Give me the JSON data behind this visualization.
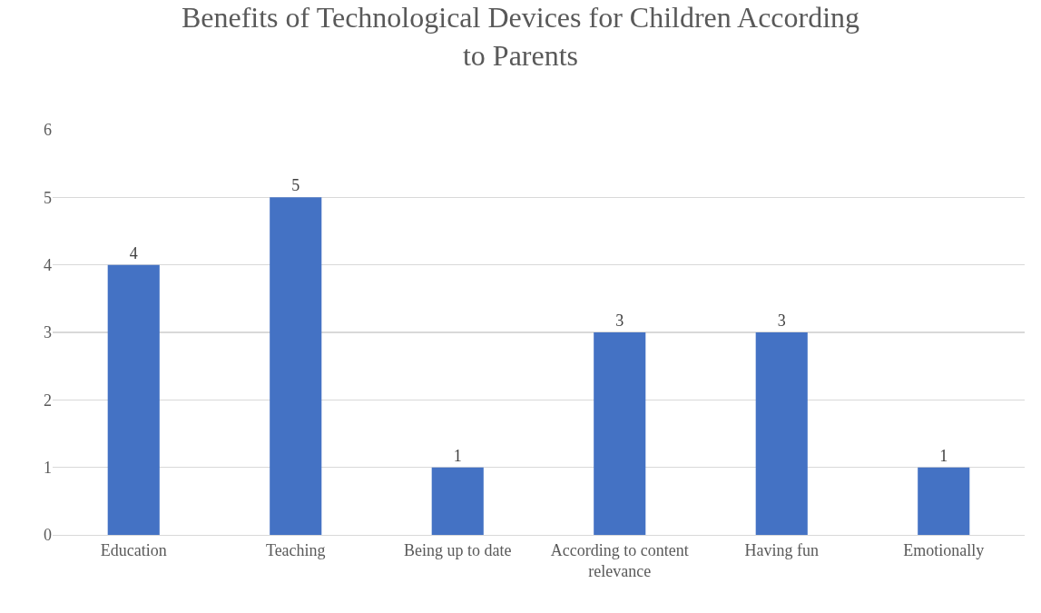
{
  "chart_data": {
    "type": "bar",
    "title": "Benefits of Technological Devices for Children According to Parents",
    "categories": [
      "Education",
      "Teaching",
      "Being up to date",
      "According to content relevance",
      "Having fun",
      "Emotionally"
    ],
    "values": [
      4,
      5,
      1,
      3,
      3,
      1
    ],
    "color": "#4472c4",
    "ylim": [
      0,
      6
    ],
    "yticks": [
      0,
      1,
      2,
      3,
      4,
      5,
      6
    ],
    "grid": "y",
    "data_labels": true,
    "legend": false
  }
}
